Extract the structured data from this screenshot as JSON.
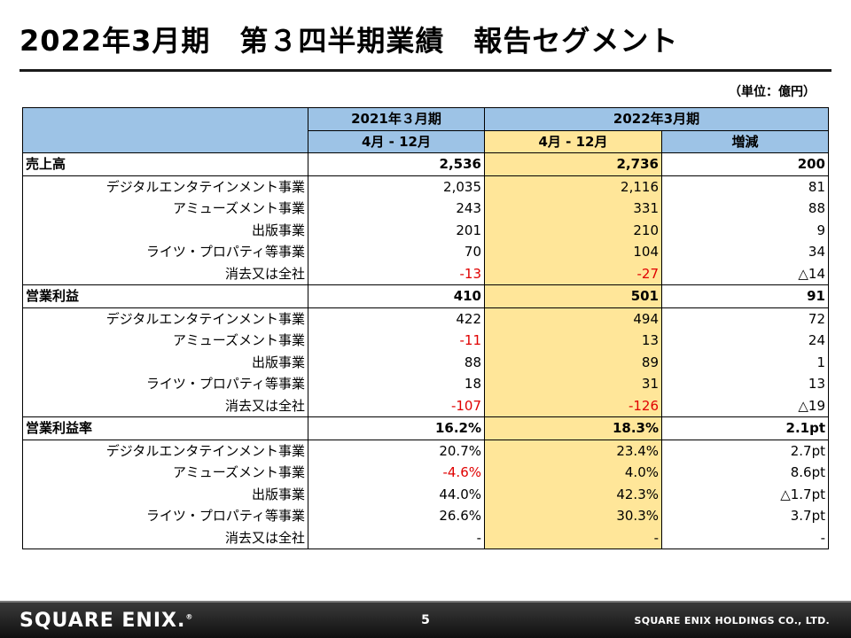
{
  "page_title": "2022年3月期　第３四半期業績　報告セグメント",
  "unit_label": "（単位：億円）",
  "table": {
    "header": {
      "prev_fy": "2021年３月期",
      "curr_fy": "2022年3月期",
      "prev_period": "4月 - 12月",
      "curr_period": "4月 - 12月",
      "change": "増減"
    },
    "rows": [
      {
        "type": "main",
        "label": "売上高",
        "prev": "2,536",
        "curr": "2,736",
        "diff": "200"
      },
      {
        "type": "sub",
        "label": "デジタルエンタテインメント事業",
        "prev": "2,035",
        "curr": "2,116",
        "diff": "81"
      },
      {
        "type": "sub",
        "label": "アミューズメント事業",
        "prev": "243",
        "curr": "331",
        "diff": "88"
      },
      {
        "type": "sub",
        "label": "出版事業",
        "prev": "201",
        "curr": "210",
        "diff": "9"
      },
      {
        "type": "sub",
        "label": "ライツ・プロパティ等事業",
        "prev": "70",
        "curr": "104",
        "diff": "34"
      },
      {
        "type": "sub",
        "label": "消去又は全社",
        "prev": "-13",
        "curr": "-27",
        "diff": "△14",
        "prev_neg": true,
        "curr_neg": true
      },
      {
        "type": "main",
        "label": "営業利益",
        "prev": "410",
        "curr": "501",
        "diff": "91"
      },
      {
        "type": "sub",
        "label": "デジタルエンタテインメント事業",
        "prev": "422",
        "curr": "494",
        "diff": "72"
      },
      {
        "type": "sub",
        "label": "アミューズメント事業",
        "prev": "-11",
        "curr": "13",
        "diff": "24",
        "prev_neg": true
      },
      {
        "type": "sub",
        "label": "出版事業",
        "prev": "88",
        "curr": "89",
        "diff": "1"
      },
      {
        "type": "sub",
        "label": "ライツ・プロパティ等事業",
        "prev": "18",
        "curr": "31",
        "diff": "13"
      },
      {
        "type": "sub",
        "label": "消去又は全社",
        "prev": "-107",
        "curr": "-126",
        "diff": "△19",
        "prev_neg": true,
        "curr_neg": true
      },
      {
        "type": "main",
        "label": "営業利益率",
        "prev": "16.2%",
        "curr": "18.3%",
        "diff": "2.1pt"
      },
      {
        "type": "sub",
        "label": "デジタルエンタテインメント事業",
        "prev": "20.7%",
        "curr": "23.4%",
        "diff": "2.7pt"
      },
      {
        "type": "sub",
        "label": "アミューズメント事業",
        "prev": "-4.6%",
        "curr": "4.0%",
        "diff": "8.6pt",
        "prev_neg": true
      },
      {
        "type": "sub",
        "label": "出版事業",
        "prev": "44.0%",
        "curr": "42.3%",
        "diff": "△1.7pt"
      },
      {
        "type": "sub",
        "label": "ライツ・プロパティ等事業",
        "prev": "26.6%",
        "curr": "30.3%",
        "diff": "3.7pt"
      },
      {
        "type": "sub",
        "label": "消去又は全社",
        "prev": "-",
        "curr": "-",
        "diff": "-"
      }
    ]
  },
  "footer": {
    "logo": "SQUARE ENIX.",
    "logo_mark": "®",
    "page_number": "5",
    "company": "SQUARE ENIX HOLDINGS CO., LTD."
  },
  "colors": {
    "header_blue": "#9dc3e6",
    "highlight_yellow": "#ffe699",
    "negative_red": "#e00000"
  }
}
